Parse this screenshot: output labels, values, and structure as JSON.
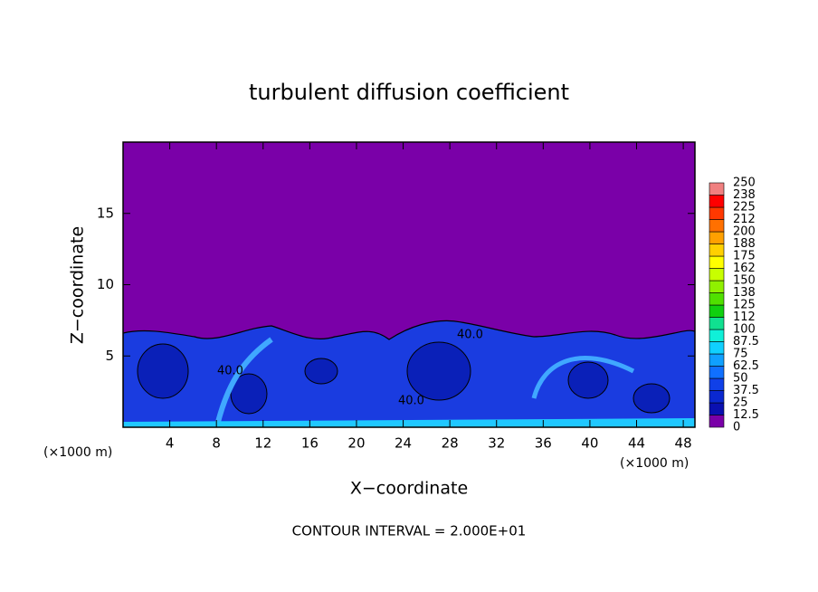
{
  "chart_data": {
    "type": "contour",
    "title": "turbulent diffusion coefficient",
    "xlabel": "X−coordinate",
    "ylabel": "Z−coordinate",
    "xunit": "(×1000 m)",
    "yunit": "(×1000 m)",
    "xlim": [
      0,
      49
    ],
    "ylim": [
      0,
      20
    ],
    "xticks": [
      4,
      8,
      12,
      16,
      20,
      24,
      28,
      32,
      36,
      40,
      44,
      48
    ],
    "yticks": [
      5,
      10,
      15
    ],
    "levels": [
      0,
      12.5,
      25,
      37.5,
      50,
      62.5,
      75,
      87.5,
      100,
      112,
      125,
      138,
      150,
      162,
      175,
      188,
      200,
      212,
      225,
      238,
      250
    ],
    "colors": [
      "#7a00a8",
      "#0a10b0",
      "#0a28d0",
      "#1040e8",
      "#1070ff",
      "#10a0ff",
      "#10d0ff",
      "#10f0d8",
      "#10e090",
      "#10d010",
      "#50e000",
      "#90f000",
      "#c8ff00",
      "#ffff00",
      "#ffd000",
      "#ffa000",
      "#ff7000",
      "#ff3800",
      "#ff0000",
      "#f08080"
    ],
    "annotations": [
      "40.0",
      "40.0",
      "40.0"
    ],
    "footer": "CONTOUR INTERVAL = 2.000E+01"
  }
}
